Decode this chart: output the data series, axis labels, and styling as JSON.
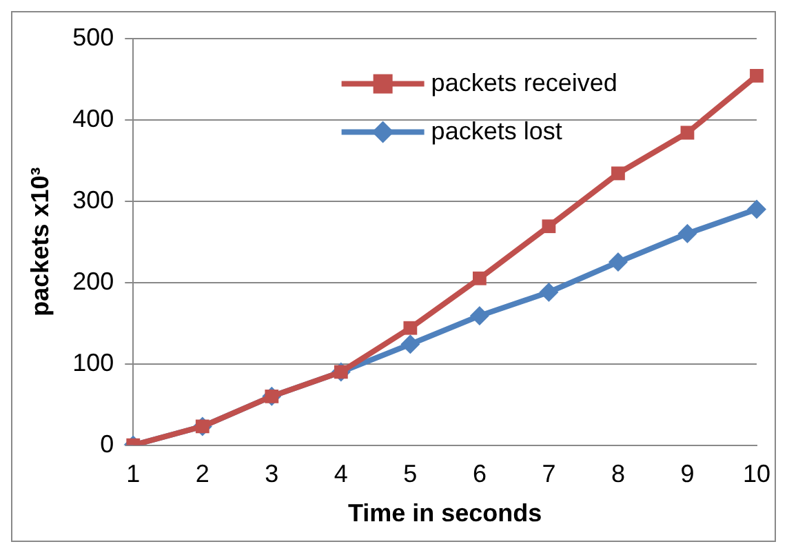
{
  "chart_data": {
    "type": "line",
    "xlabel": "Time in seconds",
    "ylabel": "packets x10³",
    "categories": [
      "1",
      "2",
      "3",
      "4",
      "5",
      "6",
      "7",
      "8",
      "9",
      "10"
    ],
    "series": [
      {
        "name": "packets received",
        "color": "#c0504d",
        "marker": "square",
        "values": [
          0,
          23,
          60,
          90,
          144,
          205,
          269,
          334,
          384,
          454
        ]
      },
      {
        "name": "packets lost",
        "color": "#4f81bd",
        "marker": "diamond",
        "values": [
          0,
          23,
          60,
          90,
          124,
          159,
          188,
          225,
          260,
          290
        ]
      }
    ],
    "ylim": [
      0,
      500
    ],
    "yticks": [
      0,
      100,
      200,
      300,
      400,
      500
    ],
    "grid": "y",
    "legend": "top",
    "line_style": "solid"
  }
}
